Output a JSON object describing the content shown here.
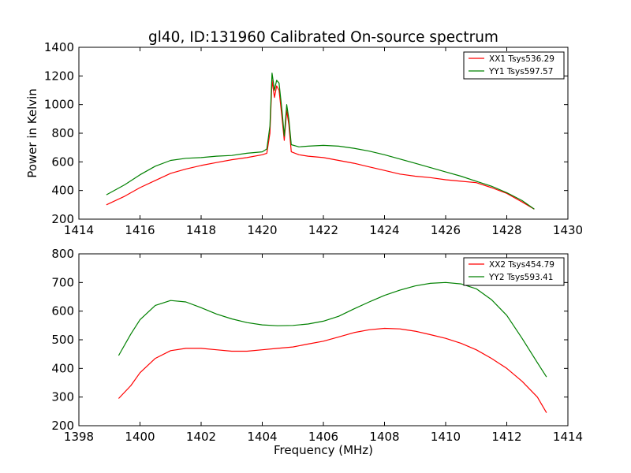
{
  "chart_data": [
    {
      "type": "line",
      "title": "gl40, ID:131960 Calibrated On-source spectrum",
      "xlabel": "",
      "ylabel": "Power in Kelvin",
      "xlim": [
        1414,
        1430
      ],
      "ylim": [
        200,
        1400
      ],
      "xticks": [
        1414,
        1416,
        1418,
        1420,
        1422,
        1424,
        1426,
        1428,
        1430
      ],
      "yticks": [
        200,
        400,
        600,
        800,
        1000,
        1200,
        1400
      ],
      "legend_position": "top-right",
      "series": [
        {
          "name": "XX1 Tsys536.29",
          "color": "#ff0000",
          "points": [
            [
              1414.9,
              300
            ],
            [
              1415.5,
              360
            ],
            [
              1416.0,
              420
            ],
            [
              1416.5,
              470
            ],
            [
              1417.0,
              520
            ],
            [
              1417.5,
              550
            ],
            [
              1418.0,
              575
            ],
            [
              1418.5,
              595
            ],
            [
              1419.0,
              615
            ],
            [
              1419.5,
              630
            ],
            [
              1420.0,
              650
            ],
            [
              1420.15,
              660
            ],
            [
              1420.25,
              800
            ],
            [
              1420.32,
              1170
            ],
            [
              1420.4,
              1050
            ],
            [
              1420.47,
              1130
            ],
            [
              1420.55,
              1100
            ],
            [
              1420.65,
              900
            ],
            [
              1420.72,
              750
            ],
            [
              1420.8,
              960
            ],
            [
              1420.87,
              860
            ],
            [
              1420.95,
              670
            ],
            [
              1421.2,
              650
            ],
            [
              1421.5,
              640
            ],
            [
              1422.0,
              630
            ],
            [
              1422.5,
              610
            ],
            [
              1423.0,
              590
            ],
            [
              1423.5,
              565
            ],
            [
              1424.0,
              540
            ],
            [
              1424.5,
              515
            ],
            [
              1425.0,
              500
            ],
            [
              1425.5,
              490
            ],
            [
              1426.0,
              475
            ],
            [
              1426.5,
              465
            ],
            [
              1427.0,
              455
            ],
            [
              1427.5,
              420
            ],
            [
              1428.0,
              380
            ],
            [
              1428.5,
              320
            ],
            [
              1428.9,
              270
            ]
          ]
        },
        {
          "name": "YY1 Tsys597.57",
          "color": "#008000",
          "points": [
            [
              1414.9,
              370
            ],
            [
              1415.5,
              440
            ],
            [
              1416.0,
              510
            ],
            [
              1416.5,
              570
            ],
            [
              1417.0,
              610
            ],
            [
              1417.5,
              625
            ],
            [
              1418.0,
              630
            ],
            [
              1418.5,
              640
            ],
            [
              1419.0,
              645
            ],
            [
              1419.5,
              660
            ],
            [
              1420.0,
              670
            ],
            [
              1420.15,
              690
            ],
            [
              1420.25,
              850
            ],
            [
              1420.32,
              1220
            ],
            [
              1420.4,
              1100
            ],
            [
              1420.47,
              1170
            ],
            [
              1420.55,
              1150
            ],
            [
              1420.65,
              950
            ],
            [
              1420.72,
              780
            ],
            [
              1420.8,
              1000
            ],
            [
              1420.87,
              900
            ],
            [
              1420.95,
              720
            ],
            [
              1421.2,
              705
            ],
            [
              1421.5,
              710
            ],
            [
              1422.0,
              715
            ],
            [
              1422.5,
              710
            ],
            [
              1423.0,
              695
            ],
            [
              1423.5,
              675
            ],
            [
              1424.0,
              650
            ],
            [
              1424.5,
              620
            ],
            [
              1425.0,
              590
            ],
            [
              1425.5,
              560
            ],
            [
              1426.0,
              530
            ],
            [
              1426.5,
              500
            ],
            [
              1427.0,
              465
            ],
            [
              1427.5,
              430
            ],
            [
              1428.0,
              385
            ],
            [
              1428.5,
              330
            ],
            [
              1428.9,
              270
            ]
          ]
        }
      ]
    },
    {
      "type": "line",
      "title": "",
      "xlabel": "Frequency (MHz)",
      "ylabel": "",
      "xlim": [
        1398,
        1414
      ],
      "ylim": [
        200,
        800
      ],
      "xticks": [
        1398,
        1400,
        1402,
        1404,
        1406,
        1408,
        1410,
        1412,
        1414
      ],
      "yticks": [
        200,
        300,
        400,
        500,
        600,
        700,
        800
      ],
      "legend_position": "top-right",
      "series": [
        {
          "name": "XX2 Tsys454.79",
          "color": "#ff0000",
          "points": [
            [
              1399.3,
              295
            ],
            [
              1399.7,
              340
            ],
            [
              1400.0,
              385
            ],
            [
              1400.5,
              435
            ],
            [
              1401.0,
              462
            ],
            [
              1401.5,
              470
            ],
            [
              1402.0,
              470
            ],
            [
              1402.5,
              465
            ],
            [
              1403.0,
              460
            ],
            [
              1403.5,
              460
            ],
            [
              1404.0,
              465
            ],
            [
              1404.5,
              470
            ],
            [
              1405.0,
              475
            ],
            [
              1405.5,
              485
            ],
            [
              1406.0,
              495
            ],
            [
              1406.5,
              510
            ],
            [
              1407.0,
              525
            ],
            [
              1407.5,
              535
            ],
            [
              1408.0,
              540
            ],
            [
              1408.5,
              538
            ],
            [
              1409.0,
              530
            ],
            [
              1409.5,
              518
            ],
            [
              1410.0,
              505
            ],
            [
              1410.5,
              488
            ],
            [
              1411.0,
              465
            ],
            [
              1411.5,
              435
            ],
            [
              1412.0,
              400
            ],
            [
              1412.5,
              355
            ],
            [
              1413.0,
              300
            ],
            [
              1413.3,
              245
            ]
          ]
        },
        {
          "name": "YY2 Tsys593.41",
          "color": "#008000",
          "points": [
            [
              1399.3,
              445
            ],
            [
              1399.7,
              520
            ],
            [
              1400.0,
              570
            ],
            [
              1400.5,
              620
            ],
            [
              1401.0,
              637
            ],
            [
              1401.5,
              632
            ],
            [
              1402.0,
              612
            ],
            [
              1402.5,
              590
            ],
            [
              1403.0,
              573
            ],
            [
              1403.5,
              560
            ],
            [
              1404.0,
              552
            ],
            [
              1404.5,
              549
            ],
            [
              1405.0,
              550
            ],
            [
              1405.5,
              555
            ],
            [
              1406.0,
              565
            ],
            [
              1406.5,
              582
            ],
            [
              1407.0,
              608
            ],
            [
              1407.5,
              632
            ],
            [
              1408.0,
              655
            ],
            [
              1408.5,
              673
            ],
            [
              1409.0,
              688
            ],
            [
              1409.5,
              697
            ],
            [
              1410.0,
              700
            ],
            [
              1410.5,
              695
            ],
            [
              1411.0,
              678
            ],
            [
              1411.5,
              640
            ],
            [
              1412.0,
              585
            ],
            [
              1412.5,
              505
            ],
            [
              1413.0,
              420
            ],
            [
              1413.3,
              370
            ]
          ]
        }
      ]
    }
  ]
}
